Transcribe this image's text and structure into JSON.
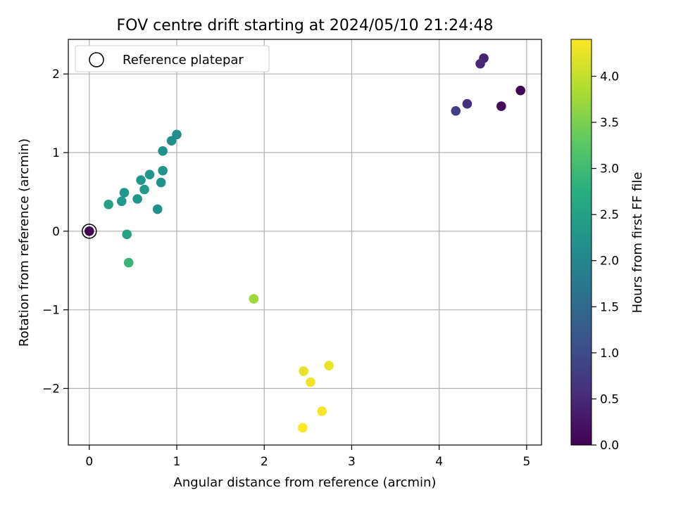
{
  "chart_data": {
    "type": "scatter",
    "title": "FOV centre drift starting at 2024/05/10 21:24:48",
    "xlabel": "Angular distance from reference (arcmin)",
    "ylabel": "Rotation from reference (arcmin)",
    "xlim": [
      -0.24,
      5.17
    ],
    "ylim": [
      -2.72,
      2.44
    ],
    "xticks": [
      0,
      1,
      2,
      3,
      4,
      5
    ],
    "yticks": [
      -2,
      -1,
      0,
      1,
      2
    ],
    "grid": true,
    "legend": {
      "position": "top-left",
      "entries": [
        "Reference platepar"
      ]
    },
    "reference": {
      "x": 0,
      "y": 0
    },
    "colorbar": {
      "label": "Hours from first FF file",
      "range": [
        0.0,
        4.4
      ],
      "ticks": [
        "0.0",
        "0.5",
        "1.0",
        "1.5",
        "2.0",
        "2.5",
        "3.0",
        "3.5",
        "4.0"
      ],
      "colormap": "viridis"
    },
    "points": [
      {
        "x": 0.0,
        "y": 0.0,
        "c": 0.0
      },
      {
        "x": 4.93,
        "y": 1.79,
        "c": 0.05
      },
      {
        "x": 4.71,
        "y": 1.59,
        "c": 0.12
      },
      {
        "x": 4.51,
        "y": 2.2,
        "c": 0.42
      },
      {
        "x": 4.47,
        "y": 2.13,
        "c": 0.5
      },
      {
        "x": 4.32,
        "y": 1.62,
        "c": 0.6
      },
      {
        "x": 4.19,
        "y": 1.53,
        "c": 0.85
      },
      {
        "x": 1.0,
        "y": 1.23,
        "c": 2.15
      },
      {
        "x": 0.94,
        "y": 1.15,
        "c": 2.15
      },
      {
        "x": 0.84,
        "y": 1.02,
        "c": 2.2
      },
      {
        "x": 0.84,
        "y": 0.77,
        "c": 2.25
      },
      {
        "x": 0.82,
        "y": 0.62,
        "c": 2.2
      },
      {
        "x": 0.69,
        "y": 0.72,
        "c": 2.3
      },
      {
        "x": 0.59,
        "y": 0.65,
        "c": 2.3
      },
      {
        "x": 0.63,
        "y": 0.53,
        "c": 2.35
      },
      {
        "x": 0.55,
        "y": 0.41,
        "c": 2.3
      },
      {
        "x": 0.4,
        "y": 0.49,
        "c": 2.3
      },
      {
        "x": 0.37,
        "y": 0.38,
        "c": 2.35
      },
      {
        "x": 0.22,
        "y": 0.34,
        "c": 2.5
      },
      {
        "x": 0.78,
        "y": 0.28,
        "c": 2.2
      },
      {
        "x": 0.43,
        "y": -0.04,
        "c": 2.5
      },
      {
        "x": 0.45,
        "y": -0.4,
        "c": 2.9
      },
      {
        "x": 1.88,
        "y": -0.86,
        "c": 3.75
      },
      {
        "x": 2.74,
        "y": -1.71,
        "c": 4.25
      },
      {
        "x": 2.45,
        "y": -1.78,
        "c": 4.25
      },
      {
        "x": 2.53,
        "y": -1.92,
        "c": 4.3
      },
      {
        "x": 2.66,
        "y": -2.29,
        "c": 4.35
      },
      {
        "x": 2.44,
        "y": -2.5,
        "c": 4.4
      }
    ]
  }
}
